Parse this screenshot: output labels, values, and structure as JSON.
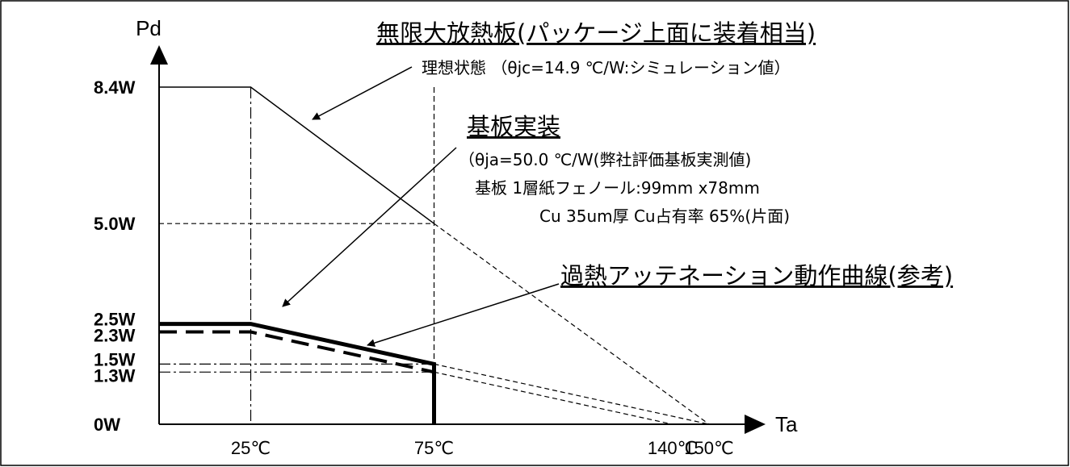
{
  "chart_data": {
    "type": "line",
    "xlabel": "Ta",
    "ylabel": "Pd",
    "xlim": [
      0,
      150
    ],
    "ylim": [
      0,
      8.4
    ],
    "x_ticks": [
      {
        "value": 25,
        "label": "25℃"
      },
      {
        "value": 75,
        "label": "75℃"
      },
      {
        "value": 140,
        "label": "140℃"
      },
      {
        "value": 150,
        "label": "150℃"
      }
    ],
    "y_ticks": [
      {
        "value": 0,
        "label": "0W"
      },
      {
        "value": 1.3,
        "label": "1.3W"
      },
      {
        "value": 1.5,
        "label": "1.5W"
      },
      {
        "value": 2.3,
        "label": "2.3W"
      },
      {
        "value": 2.5,
        "label": "2.5W"
      },
      {
        "value": 5.0,
        "label": "5.0W"
      },
      {
        "value": 8.4,
        "label": "8.4W"
      }
    ],
    "series": [
      {
        "name": "無限大放熱板(パッケージ上面に装着相当)",
        "style": "solid-thin",
        "points": [
          [
            0,
            8.4
          ],
          [
            25,
            8.4
          ],
          [
            75,
            5.0
          ]
        ],
        "extension": [
          [
            75,
            5.0
          ],
          [
            150,
            0
          ]
        ]
      },
      {
        "name": "基板実装",
        "style": "solid-thick",
        "points": [
          [
            0,
            2.5
          ],
          [
            25,
            2.5
          ],
          [
            75,
            1.5
          ],
          [
            75,
            0
          ]
        ],
        "extension": [
          [
            75,
            1.5
          ],
          [
            150,
            0
          ]
        ]
      },
      {
        "name": "過熱アッテネーション動作曲線(参考)",
        "style": "dashed-thick",
        "points": [
          [
            0,
            2.3
          ],
          [
            25,
            2.3
          ],
          [
            75,
            1.3
          ]
        ],
        "extension": [
          [
            75,
            1.3
          ],
          [
            140,
            0
          ]
        ]
      }
    ],
    "annotations": {
      "heatsink_title": "無限大放熱板(パッケージ上面に装着相当)",
      "heatsink_note": "理想状態 （θjc=14.9 ℃/W:シミュレーション値）",
      "board_title": "基板実装",
      "board_note1": "（θja=50.0 ℃/W(弊社評価基板実測値)",
      "board_note2": "基板 1層紙フェノール:99mm x78mm",
      "board_note3": "Cu 35um厚 Cu占有率 65%(片面)",
      "attenuation_title": "過熱アッテネーション動作曲線(参考)"
    }
  }
}
